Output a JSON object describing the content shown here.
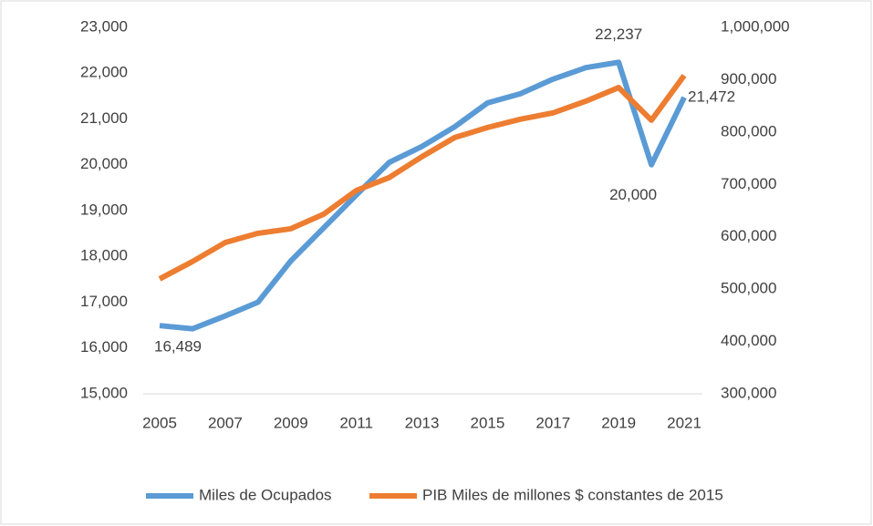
{
  "chart_data": {
    "type": "line",
    "categories": [
      "2005",
      null,
      "2007",
      null,
      "2009",
      null,
      "2011",
      null,
      "2013",
      null,
      "2015",
      null,
      "2017",
      null,
      "2019",
      null,
      "2021"
    ],
    "series": [
      {
        "name": "Miles de Ocupados",
        "color": "#5b9bd5",
        "axis": "y",
        "values": [
          16489,
          16420,
          16700,
          17000,
          17900,
          18620,
          19340,
          20050,
          20400,
          20830,
          21350,
          21550,
          21870,
          22120,
          22237,
          20000,
          21472
        ],
        "value_labels": [
          "16,489",
          null,
          null,
          null,
          null,
          null,
          null,
          null,
          null,
          null,
          null,
          null,
          null,
          null,
          "22,237",
          "20,000",
          "21,472"
        ]
      },
      {
        "name": "PIB Miles de millones $ constantes de 2015",
        "color": "#ed7d31",
        "axis": "y2",
        "values": [
          519500,
          552600,
          589000,
          606600,
          615300,
          643000,
          688500,
          713000,
          753000,
          789500,
          808700,
          824400,
          836600,
          859000,
          885000,
          822600,
          908000
        ]
      }
    ],
    "ylim": [
      15000,
      23000
    ],
    "yticks": [
      {
        "value": 15000,
        "label": "15,000"
      },
      {
        "value": 16000,
        "label": "16,000"
      },
      {
        "value": 17000,
        "label": "17,000"
      },
      {
        "value": 18000,
        "label": "18,000"
      },
      {
        "value": 19000,
        "label": "19,000"
      },
      {
        "value": 20000,
        "label": "20,000"
      },
      {
        "value": 21000,
        "label": "21,000"
      },
      {
        "value": 22000,
        "label": "22,000"
      },
      {
        "value": 23000,
        "label": "23,000"
      }
    ],
    "y2lim": [
      300000,
      1000000
    ],
    "y2ticks": [
      {
        "value": 300000,
        "label": "300,000"
      },
      {
        "value": 400000,
        "label": "400,000"
      },
      {
        "value": 500000,
        "label": "500,000"
      },
      {
        "value": 600000,
        "label": "600,000"
      },
      {
        "value": 700000,
        "label": "700,000"
      },
      {
        "value": 800000,
        "label": "800,000"
      },
      {
        "value": 900000,
        "label": "900,000"
      },
      {
        "value": 1000000,
        "label": "1,000,000"
      }
    ],
    "legend": "bottom"
  }
}
